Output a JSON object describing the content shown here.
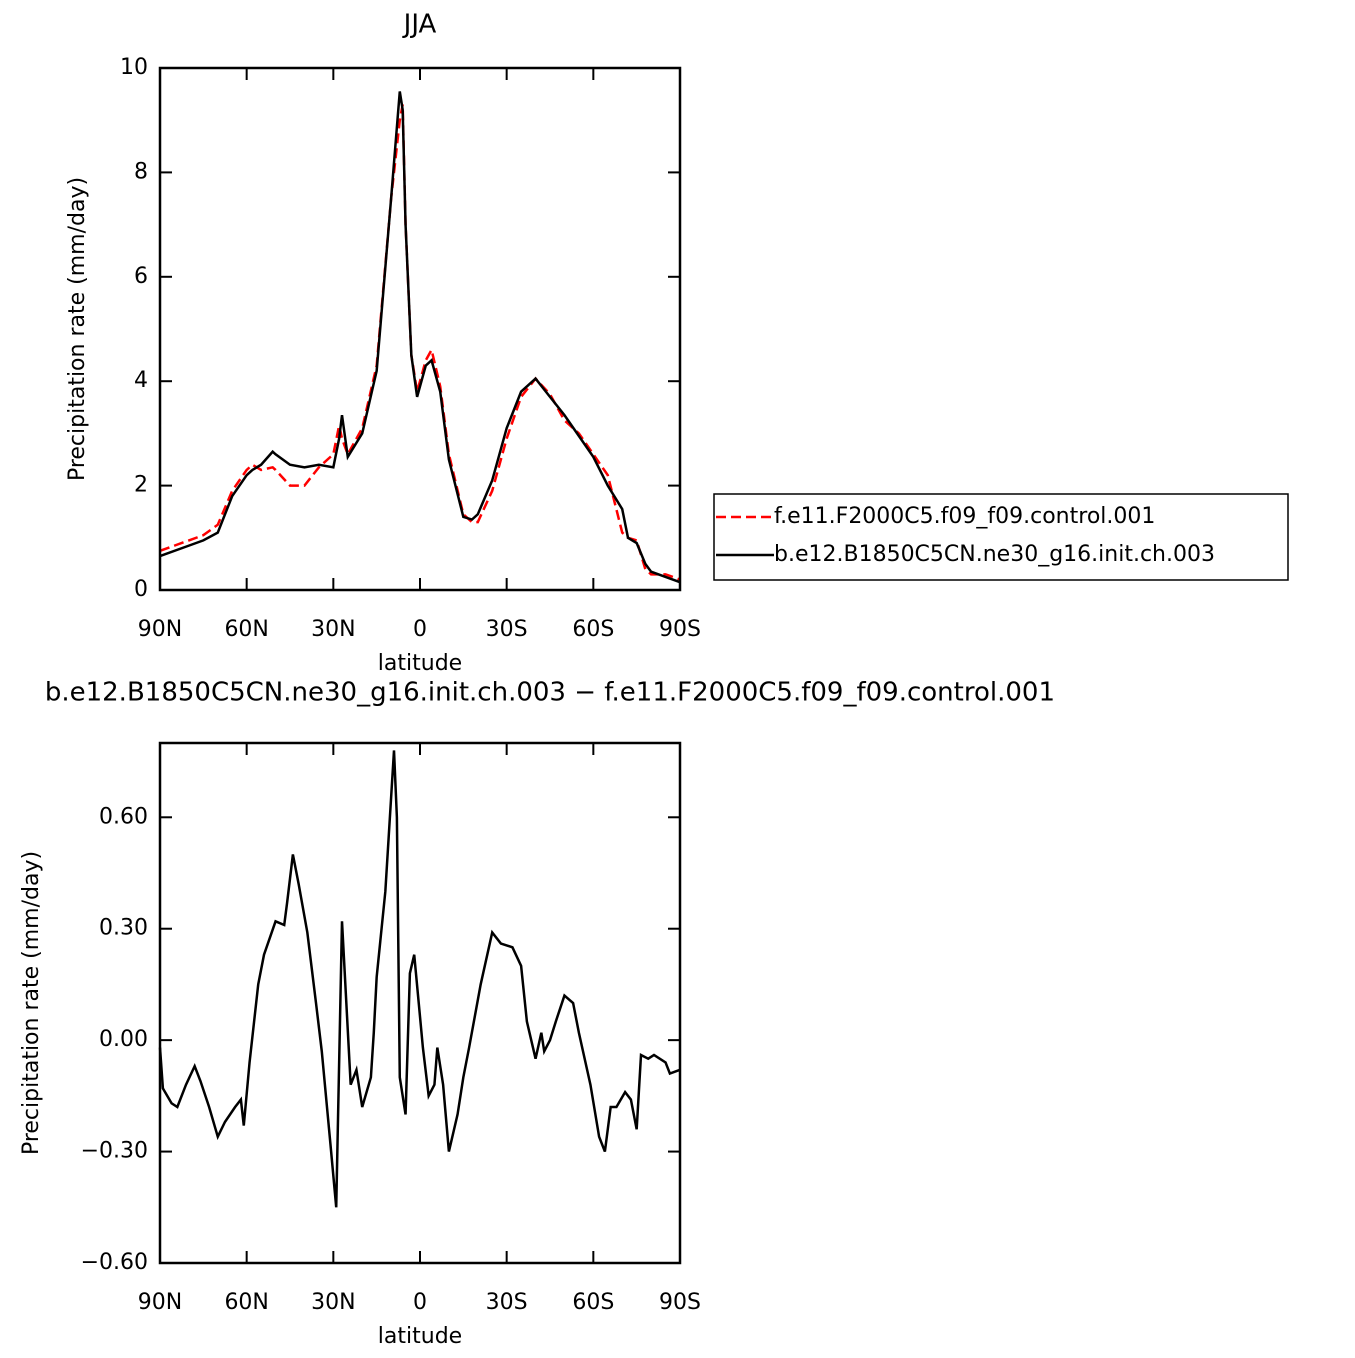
{
  "chart_data": [
    {
      "type": "line",
      "title": "JJA",
      "xlabel": "latitude",
      "ylabel": "Precipitation rate (mm/day)",
      "x": [
        90,
        80,
        75,
        70,
        65,
        60,
        58,
        55,
        51,
        50,
        45,
        40,
        35,
        30,
        28,
        27,
        25,
        20,
        15,
        10,
        7,
        6,
        5,
        3,
        1,
        -2,
        -4,
        -7,
        -10,
        -15,
        -18,
        -20,
        -25,
        -30,
        -35,
        -40,
        -45,
        -50,
        -55,
        -60,
        -65,
        -70,
        -72,
        -75,
        -78,
        -80,
        -85,
        -90
      ],
      "series": [
        {
          "name": "f.e11.F2000C5.f09_f09.control.001",
          "color": "#ff0000",
          "line_style": "dashed",
          "values": [
            0.75,
            0.95,
            1.05,
            1.25,
            1.9,
            2.3,
            2.4,
            2.3,
            2.35,
            2.3,
            2.0,
            2.0,
            2.35,
            2.6,
            3.15,
            2.9,
            2.6,
            3.1,
            4.3,
            7.5,
            9.0,
            9.3,
            7.0,
            4.5,
            3.8,
            4.4,
            4.6,
            3.9,
            2.6,
            1.45,
            1.3,
            1.3,
            1.9,
            2.9,
            3.7,
            4.05,
            3.75,
            3.25,
            3.0,
            2.6,
            2.2,
            1.1,
            1.0,
            0.95,
            0.4,
            0.3,
            0.3,
            0.2
          ]
        },
        {
          "name": "b.e12.B1850C5CN.ne30_g16.init.ch.003",
          "color": "#000000",
          "line_style": "solid",
          "values": [
            0.65,
            0.85,
            0.95,
            1.1,
            1.8,
            2.2,
            2.3,
            2.4,
            2.65,
            2.6,
            2.4,
            2.35,
            2.4,
            2.35,
            2.9,
            3.35,
            2.55,
            3.0,
            4.2,
            7.5,
            9.55,
            9.2,
            7.0,
            4.5,
            3.7,
            4.3,
            4.4,
            3.8,
            2.5,
            1.4,
            1.35,
            1.45,
            2.1,
            3.1,
            3.8,
            4.05,
            3.7,
            3.35,
            2.95,
            2.55,
            2.0,
            1.55,
            1.0,
            0.9,
            0.5,
            0.35,
            0.25,
            0.15
          ]
        }
      ],
      "xlim": [
        90,
        -90
      ],
      "xticks": [
        {
          "value": 90,
          "label": "90N"
        },
        {
          "value": 60,
          "label": "60N"
        },
        {
          "value": 30,
          "label": "30N"
        },
        0,
        {
          "value": -30,
          "label": "30S"
        },
        {
          "value": -60,
          "label": "60S"
        },
        {
          "value": -90,
          "label": "90S"
        }
      ],
      "ylim": [
        0,
        10
      ],
      "yticks": [
        0,
        2,
        4,
        6,
        8,
        10
      ],
      "legend": "right"
    },
    {
      "type": "line",
      "title": "b.e12.B1850C5CN.ne30_g16.init.ch.003 − f.e11.F2000C5.f09_f09.control.001",
      "xlabel": "latitude",
      "ylabel": "Precipitation rate (mm/day)",
      "x": [
        90,
        89,
        86,
        84,
        81,
        78,
        76,
        73,
        70,
        67.5,
        64,
        62,
        61,
        59,
        56,
        54,
        50,
        47,
        46,
        44,
        42,
        39,
        36,
        34,
        31,
        29,
        27,
        24,
        22,
        20,
        17,
        16,
        15,
        12,
        9,
        8,
        7,
        5,
        3.5,
        2,
        -1,
        -3,
        -5,
        -6,
        -8,
        -10,
        -13,
        -15,
        -17,
        -21,
        -25,
        -28,
        -32,
        -35,
        -37,
        -40,
        -42,
        -43,
        -45,
        -47,
        -50,
        -53,
        -55,
        -59,
        -62,
        -64,
        -66,
        -68,
        -71,
        -73,
        -75,
        -76.5,
        -79,
        -81,
        -85,
        -86.5,
        -90
      ],
      "values": [
        -0.02,
        -0.13,
        -0.17,
        -0.18,
        -0.12,
        -0.07,
        -0.11,
        -0.18,
        -0.26,
        -0.22,
        -0.18,
        -0.16,
        -0.23,
        -0.06,
        0.15,
        0.23,
        0.32,
        0.31,
        0.37,
        0.5,
        0.42,
        0.29,
        0.1,
        -0.03,
        -0.28,
        -0.45,
        0.32,
        -0.12,
        -0.08,
        -0.18,
        -0.1,
        0.02,
        0.17,
        0.4,
        0.78,
        0.6,
        -0.1,
        -0.2,
        0.18,
        0.23,
        -0.02,
        -0.15,
        -0.12,
        -0.02,
        -0.12,
        -0.3,
        -0.2,
        -0.1,
        -0.02,
        0.15,
        0.29,
        0.26,
        0.25,
        0.2,
        0.05,
        -0.05,
        0.02,
        -0.03,
        0.0,
        0.05,
        0.12,
        0.1,
        0.02,
        -0.12,
        -0.26,
        -0.3,
        -0.18,
        -0.18,
        -0.14,
        -0.16,
        -0.24,
        -0.04,
        -0.05,
        -0.04,
        -0.06,
        -0.09,
        -0.08
      ],
      "color": "#000000",
      "line_style": "solid",
      "xlim": [
        90,
        -90
      ],
      "xticks": [
        {
          "value": 90,
          "label": "90N"
        },
        {
          "value": 60,
          "label": "60N"
        },
        {
          "value": 30,
          "label": "30N"
        },
        0,
        {
          "value": -30,
          "label": "30S"
        },
        {
          "value": -60,
          "label": "60S"
        },
        {
          "value": -90,
          "label": "90S"
        }
      ],
      "ylim": [
        -0.6,
        0.8
      ],
      "yticks": [
        {
          "value": -0.6,
          "label": "−0.60"
        },
        {
          "value": -0.3,
          "label": "−0.30"
        },
        {
          "value": 0,
          "label": "0.00"
        },
        {
          "value": 0.3,
          "label": "0.30"
        },
        {
          "value": 0.6,
          "label": "0.60"
        }
      ]
    }
  ]
}
